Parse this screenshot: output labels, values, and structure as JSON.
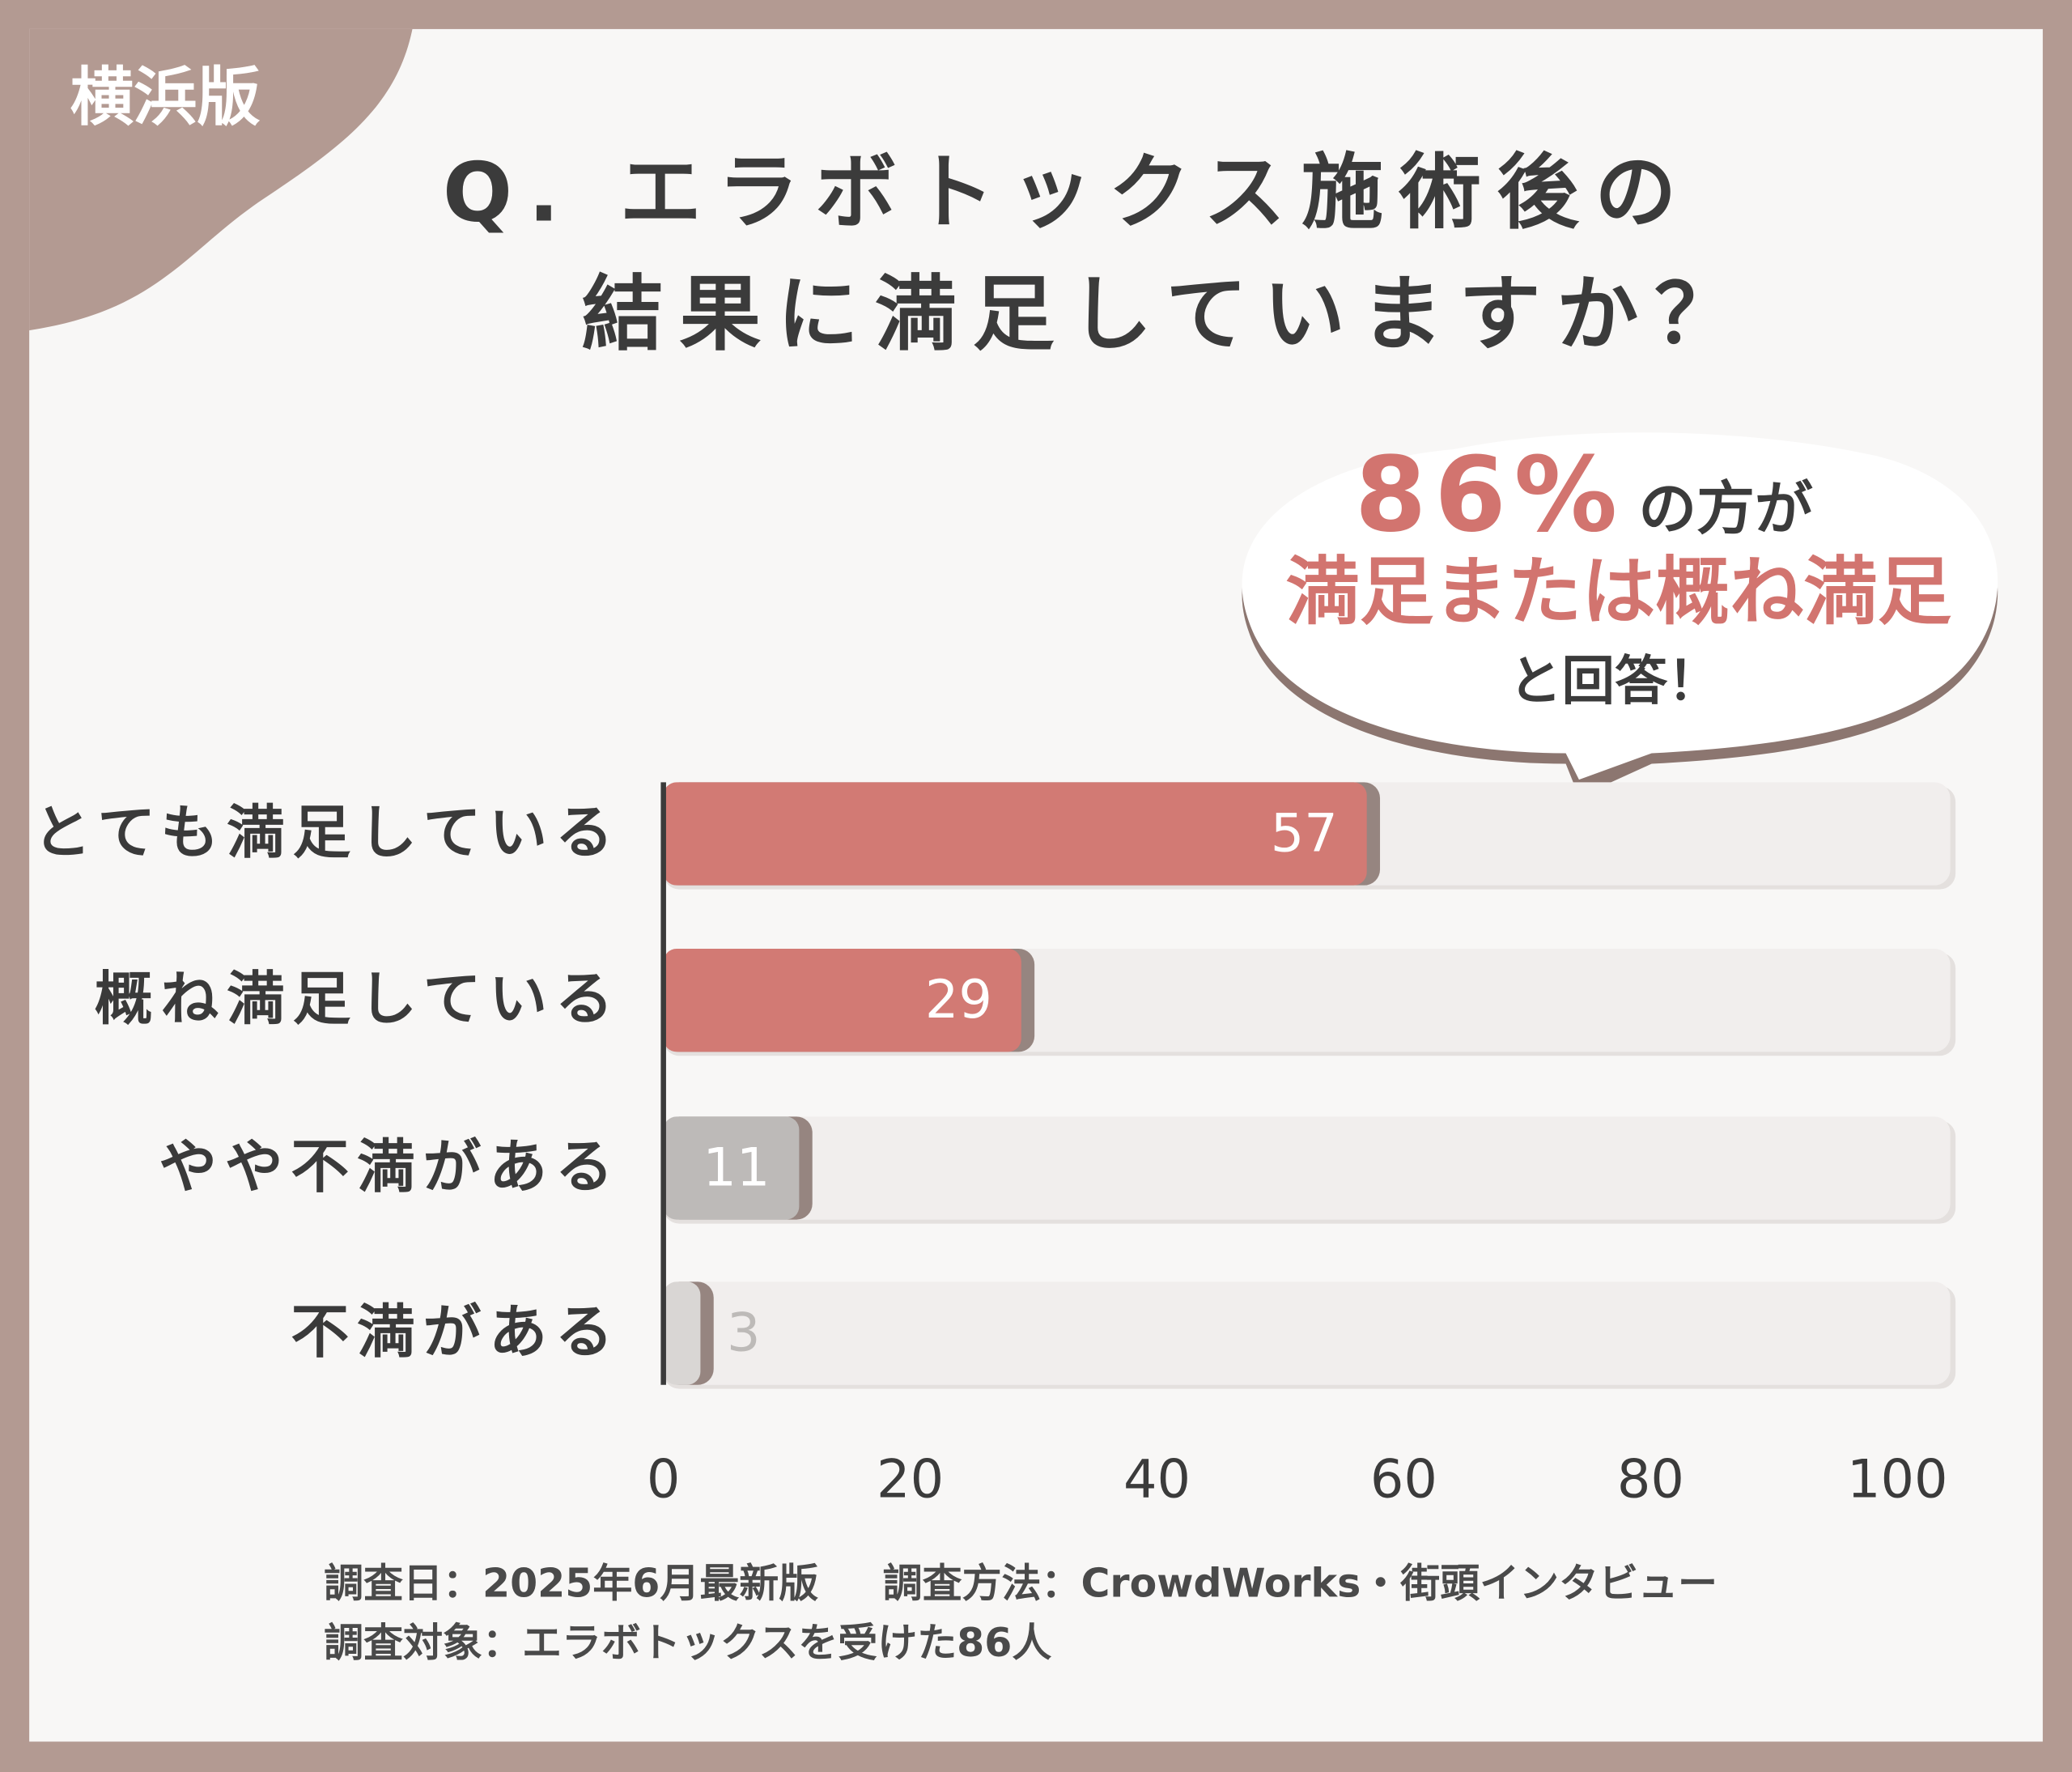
{
  "badge": "横浜版",
  "chart_data": {
    "type": "bar",
    "title": [
      "Q. エラボトックス施術後の",
      "結果に満足していますか？"
    ],
    "categories": [
      "とても満足している",
      "概ね満足している",
      "やや不満がある",
      "不満がある"
    ],
    "values": [
      57,
      29,
      11,
      3
    ],
    "colors": [
      "#d27a74",
      "#d27a74",
      "#bdbab8",
      "#d9d6d4"
    ],
    "orientation": "horizontal",
    "xlim": [
      0,
      100
    ],
    "xticks": [
      0,
      20,
      40,
      60,
      80,
      100
    ],
    "grid": false
  },
  "callout": {
    "highlight": "86%",
    "suffix": "の方が",
    "line2": "満足または概ね満足",
    "line3": "と回答！"
  },
  "footer": [
    "調査日：2025年6月最新版",
    "調査方法：CrowdWorks・街頭インタビュー",
    "調査対象：エラボトックスを受けた86人"
  ]
}
